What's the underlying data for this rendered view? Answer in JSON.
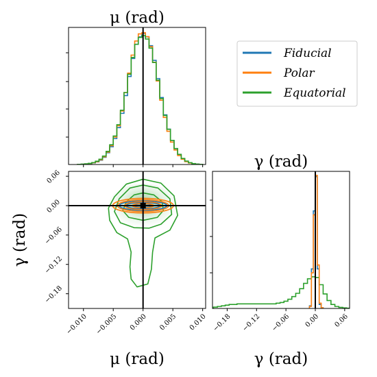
{
  "chart_data": [
    {
      "type": "histogram",
      "panel": "mu-marginal",
      "title": "μ (rad)",
      "xlim": [
        -0.0125,
        0.0105
      ],
      "truth": 0.0,
      "bin_edges": [
        -0.011,
        -0.0104,
        -0.0098,
        -0.0092,
        -0.0086,
        -0.008,
        -0.0074,
        -0.0068,
        -0.0062,
        -0.0056,
        -0.005,
        -0.0044,
        -0.0038,
        -0.0032,
        -0.0026,
        -0.002,
        -0.0014,
        -0.0008,
        -0.0002,
        0.0004,
        0.001,
        0.0016,
        0.0022,
        0.0028,
        0.0034,
        0.004,
        0.0046,
        0.0052,
        0.0058,
        0.0064,
        0.007,
        0.0076,
        0.0082,
        0.0088,
        0.0094,
        0.01
      ],
      "series": [
        {
          "name": "Fiducial",
          "color": "#1f77b4",
          "values": [
            0.1,
            0.2,
            0.4,
            0.7,
            1.2,
            2.0,
            3.3,
            5.5,
            8.9,
            13.5,
            19.7,
            28.0,
            38.8,
            52.3,
            66.8,
            80.4,
            91.2,
            96.8,
            99.5,
            96.8,
            90.1,
            79.0,
            65.2,
            50.8,
            37.7,
            26.8,
            18.3,
            12.0,
            7.5,
            4.4,
            2.5,
            1.3,
            0.6,
            0.3,
            0.1
          ]
        },
        {
          "name": "Polar",
          "color": "#ff7f0e",
          "values": [
            0.1,
            0.2,
            0.4,
            0.8,
            1.3,
            2.2,
            3.6,
            5.9,
            9.4,
            14.3,
            20.8,
            29.4,
            40.6,
            54.6,
            69.3,
            83.0,
            93.7,
            99.1,
            100.0,
            97.0,
            89.4,
            77.6,
            63.4,
            48.8,
            35.7,
            25.2,
            17.0,
            11.0,
            6.8,
            4.0,
            2.2,
            1.1,
            0.5,
            0.2,
            0.1
          ]
        },
        {
          "name": "Equatorial",
          "color": "#2ca02c",
          "values": [
            0.1,
            0.3,
            0.5,
            0.9,
            1.5,
            2.5,
            4.0,
            6.4,
            10.0,
            15.0,
            21.6,
            30.2,
            41.2,
            54.6,
            68.5,
            81.2,
            91.2,
            96.4,
            97.8,
            95.2,
            88.3,
            77.4,
            64.0,
            50.0,
            37.2,
            26.7,
            18.3,
            12.1,
            7.7,
            4.6,
            2.6,
            1.4,
            0.7,
            0.3,
            0.1
          ]
        }
      ]
    },
    {
      "type": "contour",
      "panel": "mu-gamma-joint",
      "xlim": [
        -0.0125,
        0.0105
      ],
      "ylim": [
        -0.21,
        0.07
      ],
      "xlabel": "μ (rad)",
      "ylabel": "γ (rad)",
      "xticks": [
        "−0.010",
        "−0.005",
        "0.000",
        "0.005",
        "0.010"
      ],
      "yticks": [
        "0.06",
        "0.00",
        "−0.06",
        "−0.12",
        "−0.18"
      ],
      "truth": [
        0.0,
        0.0
      ],
      "series": [
        {
          "name": "Fiducial",
          "color": "#1f77b4",
          "contours": [
            {
              "cx": 0.0,
              "cy": 0.0,
              "rx": 0.0016,
              "ry": 0.0035
            },
            {
              "cx": 0.0,
              "cy": 0.0,
              "rx": 0.0028,
              "ry": 0.0065
            },
            {
              "cx": 0.0,
              "cy": 0.0,
              "rx": 0.004,
              "ry": 0.0095
            }
          ]
        },
        {
          "name": "Polar",
          "color": "#ff7f0e",
          "contours": [
            {
              "cx": 0.0,
              "cy": 0.0,
              "rx": 0.0018,
              "ry": 0.0045
            },
            {
              "cx": 0.0,
              "cy": 0.0,
              "rx": 0.0031,
              "ry": 0.0082
            },
            {
              "cx": 0.0,
              "cy": 0.0,
              "rx": 0.0043,
              "ry": 0.012
            },
            {
              "cx": 0.0,
              "cy": 0.0,
              "rx": 0.0051,
              "ry": 0.015
            }
          ]
        },
        {
          "name": "Equatorial",
          "color": "#2ca02c",
          "contours": [
            {
              "points": [
                [
                  -0.0028,
                  0.008
                ],
                [
                  -0.0015,
                  0.022
                ],
                [
                  0.0,
                  0.026
                ],
                [
                  0.0018,
                  0.022
                ],
                [
                  0.0032,
                  0.008
                ],
                [
                  0.0034,
                  -0.01
                ],
                [
                  0.0024,
                  -0.024
                ],
                [
                  0.0,
                  -0.03
                ],
                [
                  -0.0024,
                  -0.024
                ],
                [
                  -0.0034,
                  -0.01
                ]
              ]
            },
            {
              "points": [
                [
                  -0.004,
                  0.014
                ],
                [
                  -0.0022,
                  0.036
                ],
                [
                  0.0,
                  0.042
                ],
                [
                  0.0025,
                  0.036
                ],
                [
                  0.0045,
                  0.014
                ],
                [
                  0.0048,
                  -0.018
                ],
                [
                  0.003,
                  -0.038
                ],
                [
                  0.001,
                  -0.046
                ],
                [
                  -0.0015,
                  -0.045
                ],
                [
                  -0.0038,
                  -0.035
                ],
                [
                  -0.0048,
                  -0.012
                ]
              ]
            },
            {
              "points": [
                [
                  -0.0048,
                  0.018
                ],
                [
                  -0.0028,
                  0.044
                ],
                [
                  0.0,
                  0.054
                ],
                [
                  0.003,
                  0.046
                ],
                [
                  0.0052,
                  0.02
                ],
                [
                  0.0058,
                  -0.02
                ],
                [
                  0.0045,
                  -0.05
                ],
                [
                  0.002,
                  -0.066
                ],
                [
                  0.0016,
                  -0.095
                ],
                [
                  0.0014,
                  -0.13
                ],
                [
                  0.0008,
                  -0.16
                ],
                [
                  -0.001,
                  -0.166
                ],
                [
                  -0.002,
                  -0.15
                ],
                [
                  -0.0022,
                  -0.125
                ],
                [
                  -0.002,
                  -0.095
                ],
                [
                  -0.0026,
                  -0.068
                ],
                [
                  -0.0044,
                  -0.055
                ],
                [
                  -0.0056,
                  -0.03
                ],
                [
                  -0.0058,
                  -0.005
                ]
              ]
            }
          ]
        }
      ]
    },
    {
      "type": "histogram",
      "panel": "gamma-marginal",
      "title": "γ (rad)",
      "xlim": [
        -0.21,
        0.07
      ],
      "xlabel": "γ (rad)",
      "xticks": [
        "−0.18",
        "−0.12",
        "−0.06",
        "0.00",
        "0.06"
      ],
      "truth": 0.0,
      "bin_edges": [
        -0.012,
        -0.008,
        -0.004,
        0.0,
        0.004,
        0.008,
        0.012,
        0.016
      ],
      "series": [
        {
          "name": "Fiducial",
          "color": "#1f77b4",
          "values": [
            2.0,
            30.0,
            74.0,
            100.0,
            30.0,
            3.0,
            0.5
          ]
        },
        {
          "name": "Polar",
          "color": "#ff7f0e",
          "values": [
            1.5,
            27.0,
            71.0,
            101.0,
            33.0,
            4.0,
            0.5
          ]
        }
      ],
      "equatorial": {
        "name": "Equatorial",
        "color": "#2ca02c",
        "bin_edges": [
          -0.208,
          -0.2,
          -0.192,
          -0.184,
          -0.176,
          -0.168,
          -0.16,
          -0.152,
          -0.144,
          -0.136,
          -0.128,
          -0.12,
          -0.112,
          -0.104,
          -0.096,
          -0.088,
          -0.08,
          -0.072,
          -0.064,
          -0.056,
          -0.048,
          -0.04,
          -0.032,
          -0.024,
          -0.016,
          -0.008,
          0.0,
          0.008,
          0.016,
          0.024,
          0.032,
          0.04,
          0.048,
          0.056,
          0.064,
          0.072
        ],
        "values": [
          1.0,
          1.5,
          2.0,
          2.5,
          3.0,
          3.0,
          3.5,
          3.5,
          3.5,
          3.5,
          3.5,
          3.5,
          3.5,
          3.5,
          3.5,
          3.5,
          4.0,
          4.5,
          5.5,
          7.0,
          9.0,
          11.5,
          15.0,
          19.0,
          22.5,
          24.0,
          23.5,
          18.0,
          11.0,
          6.0,
          3.0,
          1.5,
          0.8,
          0.4,
          0.2
        ]
      }
    }
  ],
  "legend": {
    "placement": "top-right",
    "entries": [
      {
        "label": "Fiducial",
        "color": "#1f77b4"
      },
      {
        "label": "Polar",
        "color": "#ff7f0e"
      },
      {
        "label": "Equatorial",
        "color": "#2ca02c"
      }
    ]
  },
  "truth_color": "#000000"
}
